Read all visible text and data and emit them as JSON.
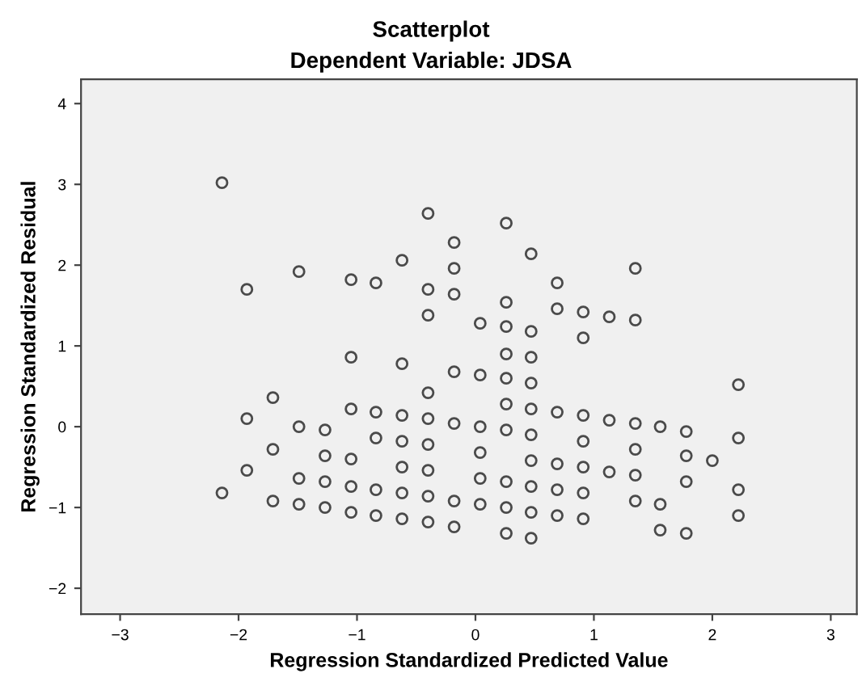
{
  "chart_data": {
    "type": "scatter",
    "title": "Scatterplot",
    "subtitle": "Dependent Variable: JDSA",
    "xlabel": "Regression Standardized Predicted Value",
    "ylabel": "Regression Standardized Residual",
    "xlim": [
      -3.33,
      3.22
    ],
    "ylim": [
      -2.32,
      4.3
    ],
    "xticks": [
      -3,
      -2,
      -1,
      0,
      1,
      2,
      3
    ],
    "yticks": [
      -2,
      -1,
      0,
      1,
      2,
      3,
      4
    ],
    "grid": false,
    "marker": "circle",
    "series": [
      {
        "color": "#4a4a4a",
        "x": [
          -2.14,
          -2.14,
          -1.93,
          -1.93,
          -1.93,
          -1.71,
          -1.71,
          -1.71,
          -1.49,
          -1.49,
          -1.49,
          -1.49,
          -1.27,
          -1.27,
          -1.27,
          -1.27,
          -1.05,
          -1.05,
          -1.05,
          -1.05,
          -1.05,
          -1.05,
          -0.84,
          -0.84,
          -0.84,
          -0.84,
          -0.84,
          -0.62,
          -0.62,
          -0.62,
          -0.62,
          -0.62,
          -0.62,
          -0.62,
          -0.4,
          -0.4,
          -0.4,
          -0.4,
          -0.4,
          -0.4,
          -0.4,
          -0.4,
          -0.4,
          -0.18,
          -0.18,
          -0.18,
          -0.18,
          -0.18,
          -0.18,
          -0.18,
          0.04,
          0.04,
          0.04,
          0.04,
          0.04,
          0.04,
          0.26,
          0.26,
          0.26,
          0.26,
          0.26,
          0.26,
          0.26,
          0.26,
          0.26,
          0.26,
          0.47,
          0.47,
          0.47,
          0.47,
          0.47,
          0.47,
          0.47,
          0.47,
          0.47,
          0.47,
          0.69,
          0.69,
          0.69,
          0.69,
          0.69,
          0.69,
          0.91,
          0.91,
          0.91,
          0.91,
          0.91,
          0.91,
          0.91,
          1.13,
          1.13,
          1.13,
          1.35,
          1.35,
          1.35,
          1.35,
          1.35,
          1.35,
          1.56,
          1.56,
          1.56,
          1.78,
          1.78,
          1.78,
          1.78,
          2.0,
          2.22,
          2.22,
          2.22,
          2.22
        ],
        "values": [
          3.02,
          -0.82,
          1.7,
          0.1,
          -0.54,
          0.36,
          -0.28,
          -0.92,
          1.92,
          0.0,
          -0.64,
          -0.96,
          -0.04,
          -0.36,
          -0.68,
          -1.0,
          1.82,
          0.86,
          0.22,
          -0.4,
          -0.74,
          -1.06,
          1.78,
          0.18,
          -0.14,
          -0.78,
          -1.1,
          2.06,
          0.78,
          0.14,
          -0.18,
          -0.5,
          -0.82,
          -1.14,
          2.64,
          1.7,
          1.38,
          0.42,
          0.1,
          -0.22,
          -0.54,
          -0.86,
          -1.18,
          2.28,
          1.96,
          1.64,
          0.68,
          0.04,
          -0.92,
          -1.24,
          1.28,
          0.64,
          0.0,
          -0.32,
          -0.64,
          -0.96,
          2.52,
          1.54,
          1.24,
          0.9,
          0.6,
          0.28,
          -0.04,
          -0.68,
          -1.0,
          -1.32,
          2.14,
          1.18,
          0.86,
          0.54,
          0.22,
          -0.1,
          -0.42,
          -0.74,
          -1.06,
          -1.38,
          1.78,
          1.46,
          0.18,
          -0.46,
          -0.78,
          -1.1,
          1.42,
          1.1,
          0.14,
          -0.18,
          -0.5,
          -0.82,
          -1.14,
          1.36,
          0.08,
          -0.56,
          1.96,
          1.32,
          0.04,
          -0.28,
          -0.6,
          -0.92,
          0.0,
          -0.96,
          -1.28,
          -0.06,
          -0.36,
          -0.68,
          -1.32,
          -0.42,
          0.52,
          -0.14,
          -0.78,
          -1.1
        ]
      }
    ]
  }
}
